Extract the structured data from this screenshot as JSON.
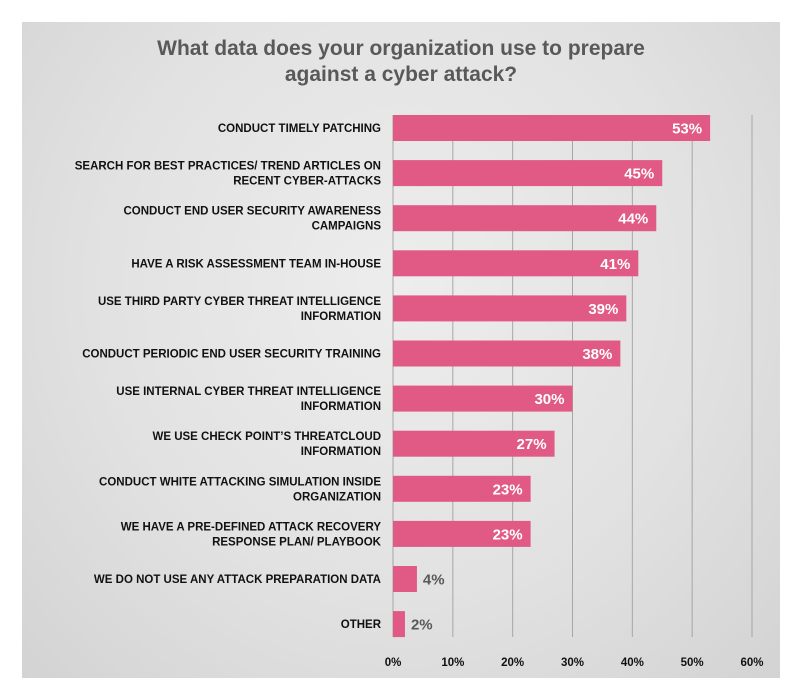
{
  "chart_data": {
    "type": "bar",
    "orientation": "horizontal",
    "title": "What data does your organization use to prepare against a cyber attack?",
    "title_lines": [
      "What data does your organization use to prepare",
      "against a cyber attack?"
    ],
    "categories": [
      "CONDUCT TIMELY PATCHING",
      "SEARCH FOR BEST PRACTICES/ TREND ARTICLES ON RECENT CYBER-ATTACKS",
      "CONDUCT END USER SECURITY AWARENESS CAMPAIGNS",
      "HAVE A RISK ASSESSMENT TEAM IN-HOUSE",
      "USE THIRD PARTY CYBER THREAT INTELLIGENCE INFORMATION",
      "CONDUCT PERIODIC END USER SECURITY TRAINING",
      "USE INTERNAL CYBER THREAT INTELLIGENCE INFORMATION",
      "WE USE CHECK POINT’S THREATCLOUD INFORMATION",
      "CONDUCT WHITE ATTACKING SIMULATION INSIDE ORGANIZATION",
      "WE HAVE A PRE-DEFINED ATTACK RECOVERY RESPONSE PLAN/ PLAYBOOK",
      "WE DO NOT USE ANY ATTACK PREPARATION DATA",
      "OTHER"
    ],
    "category_lines": [
      [
        "CONDUCT TIMELY PATCHING"
      ],
      [
        "SEARCH FOR BEST PRACTICES/ TREND ARTICLES ON",
        "RECENT CYBER-ATTACKS"
      ],
      [
        "CONDUCT END USER SECURITY AWARENESS",
        "CAMPAIGNS"
      ],
      [
        "HAVE A RISK ASSESSMENT TEAM IN-HOUSE"
      ],
      [
        "USE THIRD PARTY CYBER THREAT INTELLIGENCE",
        "INFORMATION"
      ],
      [
        "CONDUCT PERIODIC END USER SECURITY TRAINING"
      ],
      [
        "USE INTERNAL CYBER THREAT INTELLIGENCE",
        "INFORMATION"
      ],
      [
        "WE USE CHECK POINT’S THREATCLOUD",
        "INFORMATION"
      ],
      [
        "CONDUCT WHITE ATTACKING SIMULATION INSIDE",
        "ORGANIZATION"
      ],
      [
        "WE HAVE A PRE-DEFINED ATTACK RECOVERY",
        "RESPONSE PLAN/ PLAYBOOK"
      ],
      [
        "WE DO NOT USE ANY ATTACK PREPARATION DATA"
      ],
      [
        "OTHER"
      ]
    ],
    "values": [
      53,
      45,
      44,
      41,
      39,
      38,
      30,
      27,
      23,
      23,
      4,
      2
    ],
    "value_labels": [
      "53%",
      "45%",
      "44%",
      "41%",
      "39%",
      "38%",
      "30%",
      "27%",
      "23%",
      "23%",
      "4%",
      "2%"
    ],
    "xlim": [
      0,
      60
    ],
    "x_ticks": [
      0,
      10,
      20,
      30,
      40,
      50,
      60
    ],
    "x_tick_labels": [
      "0%",
      "10%",
      "20%",
      "30%",
      "40%",
      "50%",
      "60%"
    ],
    "grid": "vertical",
    "legend": "none",
    "colors": {
      "bar": "#e05a85",
      "value_label_inside": "#ffffff",
      "value_label_outside": "#595959",
      "gridline": "#a6a6a6",
      "background": "#e3e3e3",
      "title": "#595959"
    }
  }
}
